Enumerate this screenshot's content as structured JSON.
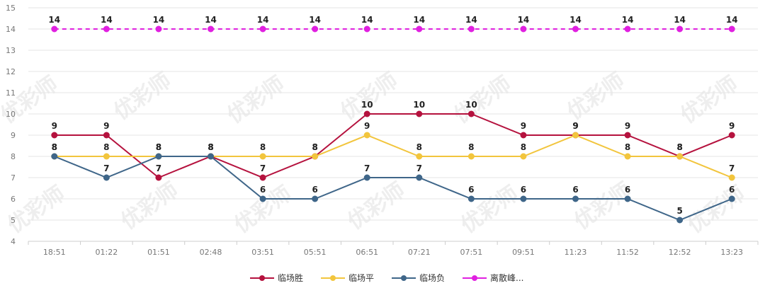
{
  "chart_data": {
    "type": "line",
    "categories": [
      "18:51",
      "01:22",
      "01:51",
      "02:48",
      "03:51",
      "05:51",
      "06:51",
      "07:21",
      "07:51",
      "09:51",
      "11:23",
      "11:52",
      "12:52",
      "13:23"
    ],
    "ylim": [
      4,
      15
    ],
    "yticks": [
      4,
      5,
      6,
      7,
      8,
      9,
      10,
      11,
      12,
      13,
      14,
      15
    ],
    "grid": "horizontal",
    "legend_position": "bottom-center",
    "series": [
      {
        "name": "临场胜",
        "color": "#b5123e",
        "dashed": false,
        "values": [
          9,
          9,
          7,
          8,
          7,
          8,
          10,
          10,
          10,
          9,
          9,
          9,
          8,
          9
        ]
      },
      {
        "name": "临场平",
        "color": "#f2c53d",
        "dashed": false,
        "values": [
          8,
          8,
          8,
          8,
          8,
          8,
          9,
          8,
          8,
          8,
          9,
          8,
          8,
          7
        ]
      },
      {
        "name": "临场负",
        "color": "#3f6689",
        "dashed": false,
        "values": [
          8,
          7,
          8,
          8,
          6,
          6,
          7,
          7,
          6,
          6,
          6,
          6,
          5,
          6
        ]
      },
      {
        "name": "离散峰...",
        "color": "#e020e0",
        "dashed": true,
        "values": [
          14,
          14,
          14,
          14,
          14,
          14,
          14,
          14,
          14,
          14,
          14,
          14,
          14,
          14
        ]
      }
    ]
  },
  "watermark": "优彩师"
}
